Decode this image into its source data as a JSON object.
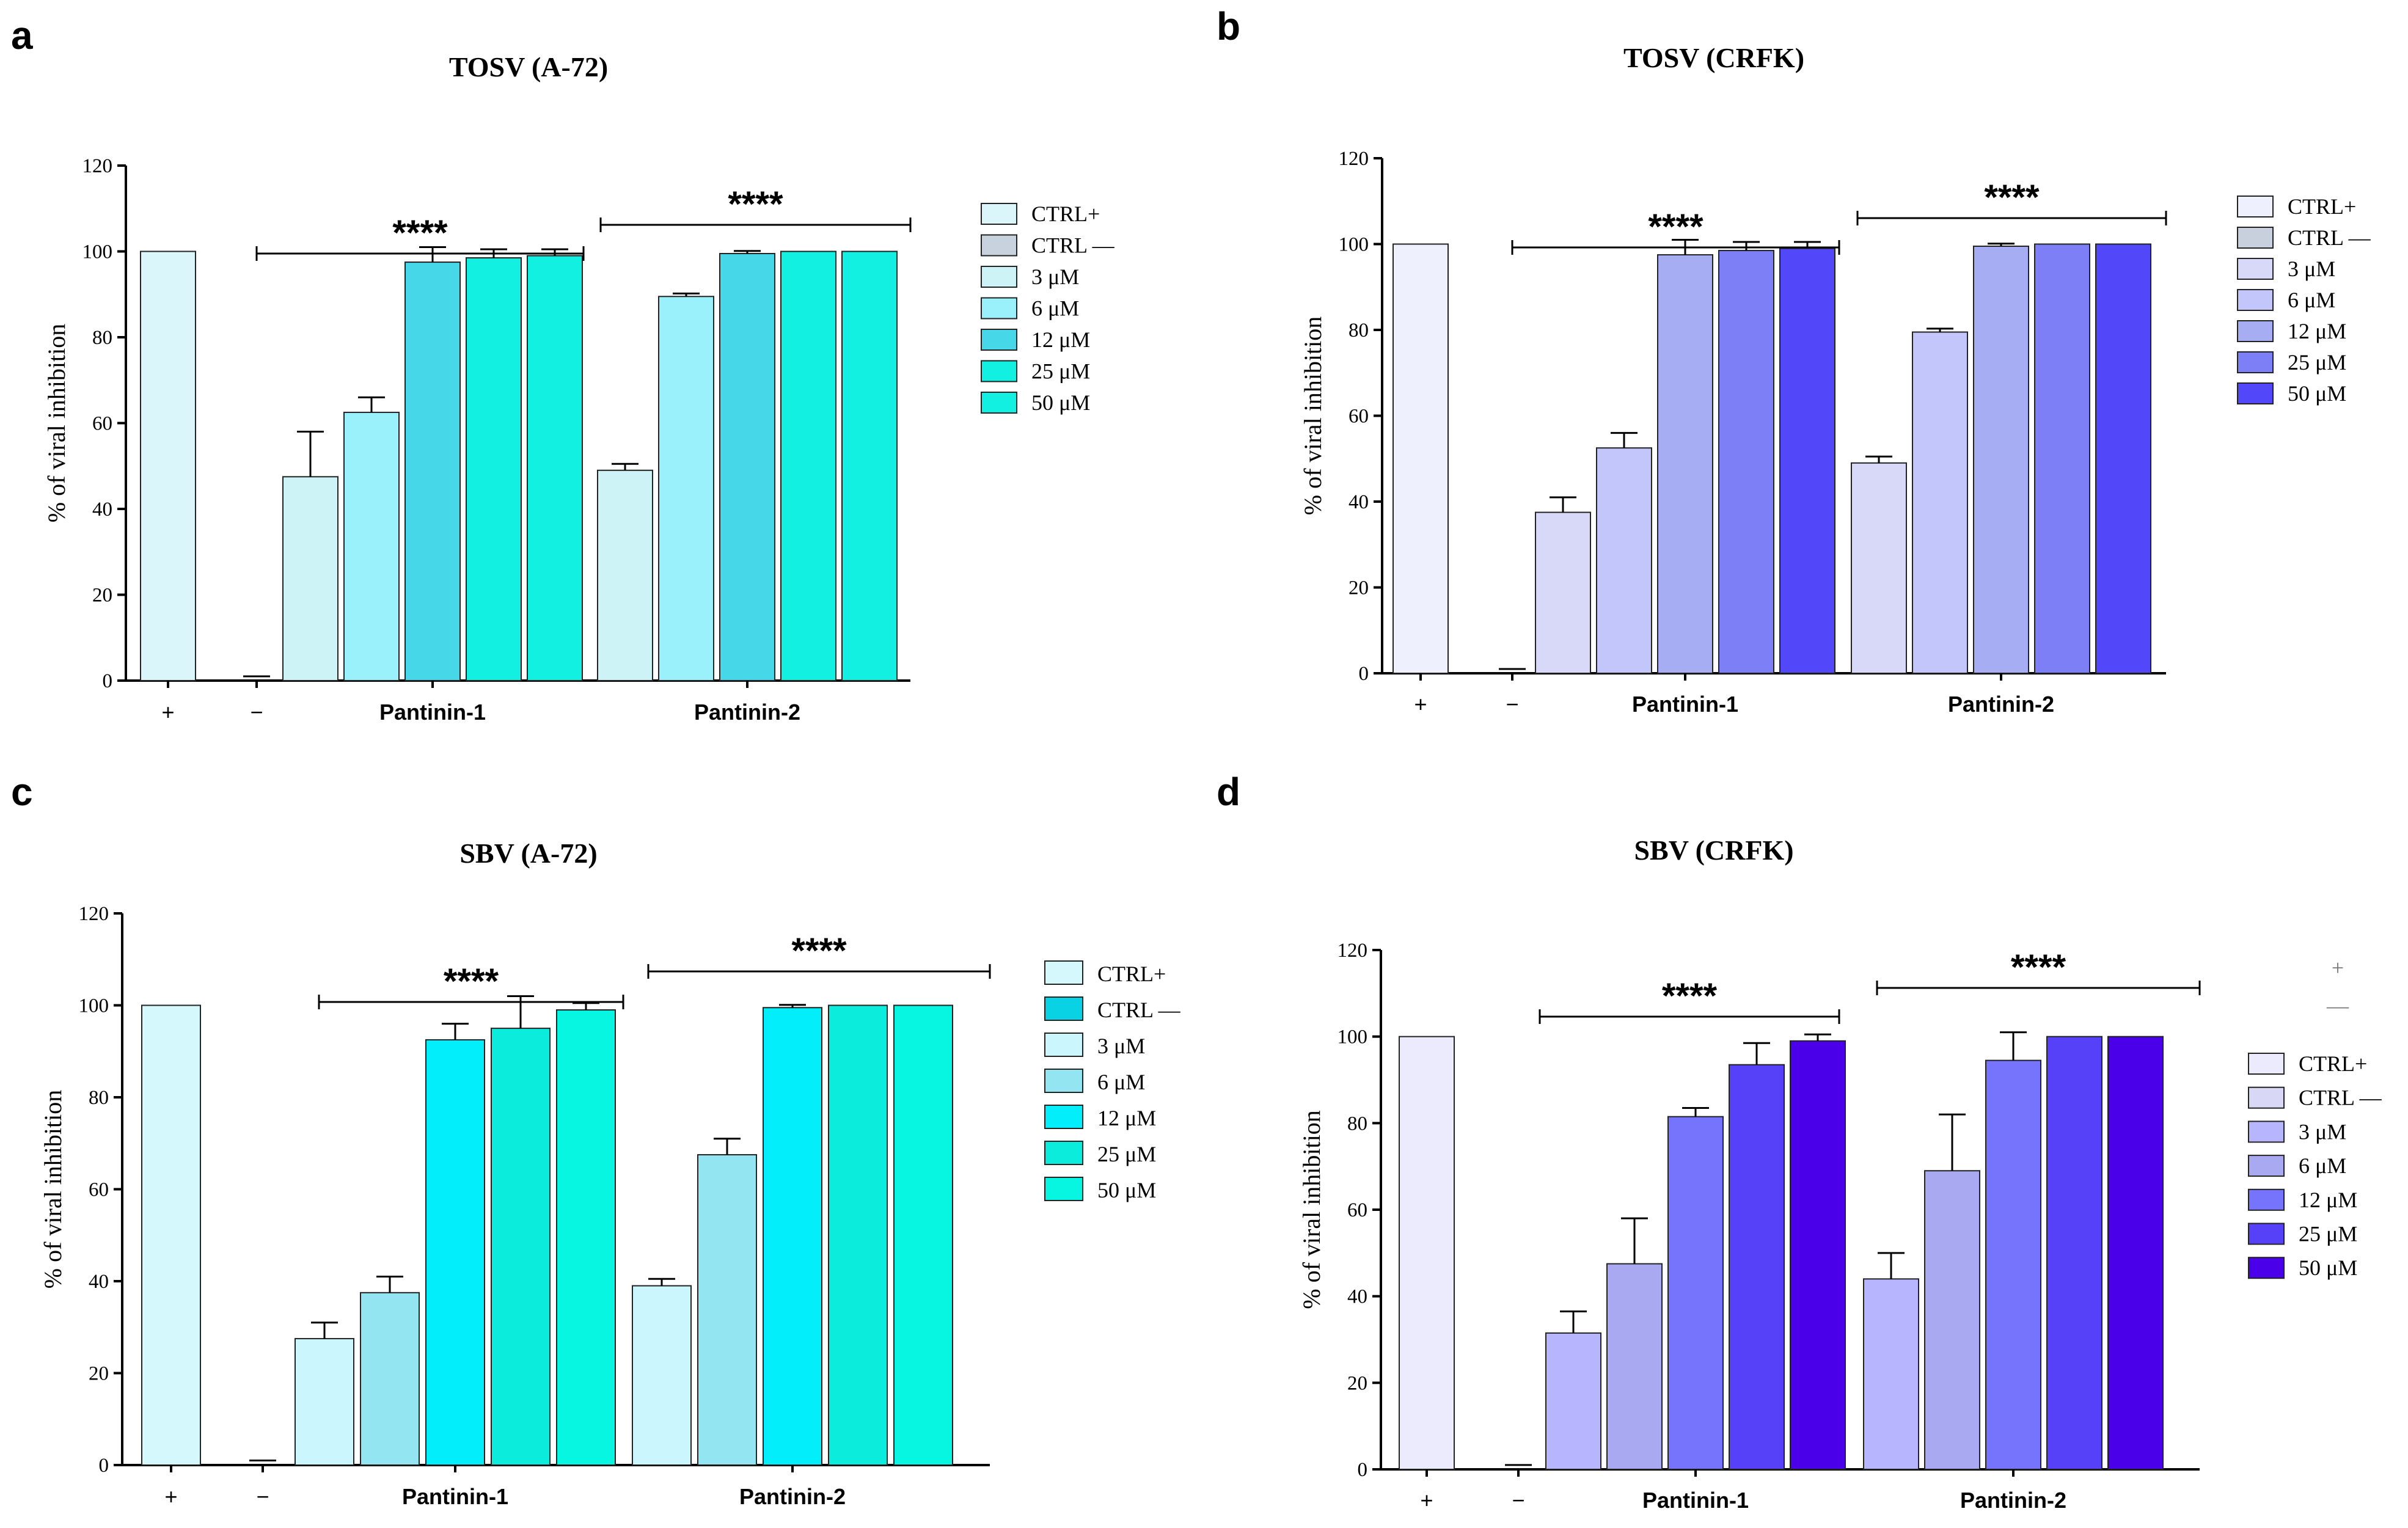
{
  "chart_data": [
    {
      "type": "bar",
      "panel_letter": "a",
      "title": "TOSV (A-72)",
      "ylabel": "% of viral inhibition",
      "xlabel": "",
      "ylim": [
        0,
        120
      ],
      "yticks": [
        "0",
        "20",
        "40",
        "60",
        "80",
        "100",
        "120"
      ],
      "controls": [
        {
          "label": "+",
          "value": 100,
          "error": 0
        },
        {
          "label": "−",
          "value": 0,
          "error": 1
        }
      ],
      "groups": [
        {
          "name": "Pantinin-1",
          "values": [
            47.5,
            62.5,
            97.5,
            98.5,
            99
          ],
          "errors": [
            10.5,
            3.5,
            3.5,
            2,
            1.5
          ],
          "significance": "****"
        },
        {
          "name": "Pantinin-2",
          "values": [
            49,
            89.5,
            99.5,
            100,
            100
          ],
          "errors": [
            1.5,
            0.7,
            0.6,
            0,
            0
          ],
          "significance": "****"
        }
      ],
      "legend": [
        "CTRL+",
        "CTRL —",
        "3 μM",
        "6 μM",
        "12 μM",
        "25 μM",
        "50 μM"
      ],
      "colors": {
        "ctrl_pos": "#daf6fa",
        "ctrl_neg": "#c8d1de",
        "doses": [
          "#cdf3f6",
          "#9bf1fb",
          "#46d8e8",
          "#12f0e2",
          "#12f0e2"
        ]
      }
    },
    {
      "type": "bar",
      "panel_letter": "b",
      "title": "TOSV (CRFK)",
      "ylabel": "% of viral inhibition",
      "xlabel": "",
      "ylim": [
        0,
        120
      ],
      "yticks": [
        "0",
        "20",
        "40",
        "60",
        "80",
        "100",
        "120"
      ],
      "controls": [
        {
          "label": "+",
          "value": 100,
          "error": 0
        },
        {
          "label": "−",
          "value": 0,
          "error": 1
        }
      ],
      "groups": [
        {
          "name": "Pantinin-1",
          "values": [
            37.5,
            52.5,
            97.5,
            98.5,
            99
          ],
          "errors": [
            3.5,
            3.5,
            3.5,
            2,
            1.5
          ],
          "significance": "****"
        },
        {
          "name": "Pantinin-2",
          "values": [
            49,
            79.5,
            99.5,
            100,
            100
          ],
          "errors": [
            1.5,
            0.8,
            0.6,
            0,
            0
          ],
          "significance": "****"
        }
      ],
      "legend": [
        "CTRL+",
        "CTRL —",
        "3 μM",
        "6 μM",
        "12 μM",
        "25 μM",
        "50 μM"
      ],
      "colors": {
        "ctrl_pos": "#eef0fd",
        "ctrl_neg": "#c9d0dd",
        "doses": [
          "#d8d8f8",
          "#c3c6fb",
          "#a6adf3",
          "#7c7ff6",
          "#5248f9"
        ]
      }
    },
    {
      "type": "bar",
      "panel_letter": "c",
      "title": "SBV (A-72)",
      "ylabel": "% of viral inhibition",
      "xlabel": "",
      "ylim": [
        0,
        120
      ],
      "yticks": [
        "0",
        "20",
        "40",
        "60",
        "80",
        "100",
        "120"
      ],
      "controls": [
        {
          "label": "+",
          "value": 100,
          "error": 0
        },
        {
          "label": "−",
          "value": 0,
          "error": 1
        }
      ],
      "groups": [
        {
          "name": "Pantinin-1",
          "values": [
            27.5,
            37.5,
            92.5,
            95,
            99
          ],
          "errors": [
            3.5,
            3.5,
            3.5,
            7,
            1.5
          ],
          "significance": "****"
        },
        {
          "name": "Pantinin-2",
          "values": [
            39,
            67.5,
            99.5,
            100,
            100
          ],
          "errors": [
            1.5,
            3.5,
            0.6,
            0,
            0
          ],
          "significance": "****"
        }
      ],
      "legend": [
        "CTRL+",
        "CTRL —",
        "3 μM",
        "6 μM",
        "12 μM",
        "25 μM",
        "50 μM"
      ],
      "colors": {
        "ctrl_pos": "#d4f8fc",
        "ctrl_neg": "#08d2e4",
        "doses": [
          "#ccf6fd",
          "#93e6f1",
          "#03eefb",
          "#0cecdd",
          "#06f6e2"
        ]
      }
    },
    {
      "type": "bar",
      "panel_letter": "d",
      "title": "SBV (CRFK)",
      "ylabel": "% of viral inhibition",
      "xlabel": "",
      "ylim": [
        0,
        120
      ],
      "yticks": [
        "0",
        "20",
        "40",
        "60",
        "80",
        "100",
        "120"
      ],
      "controls": [
        {
          "label": "+",
          "value": 100,
          "error": 0
        },
        {
          "label": "−",
          "value": 0,
          "error": 1
        }
      ],
      "groups": [
        {
          "name": "Pantinin-1",
          "values": [
            31.5,
            47.5,
            81.5,
            93.5,
            99
          ],
          "errors": [
            5,
            10.5,
            2,
            5,
            1.5
          ],
          "significance": "****"
        },
        {
          "name": "Pantinin-2",
          "values": [
            44,
            69,
            94.5,
            100,
            100
          ],
          "errors": [
            6,
            13,
            6.5,
            0,
            0
          ],
          "significance": "****"
        }
      ],
      "legend": [
        "CTRL+",
        "CTRL —",
        "3 μM",
        "6 μM",
        "12 μM",
        "25 μM",
        "50 μM"
      ],
      "extra_marks": [
        "+",
        "—"
      ],
      "colors": {
        "ctrl_pos": "#ebebfd",
        "ctrl_neg": "#d8d8f6",
        "doses": [
          "#b7b5fd",
          "#a9a9f2",
          "#7673fd",
          "#5641f8",
          "#4a00e8"
        ]
      }
    }
  ]
}
